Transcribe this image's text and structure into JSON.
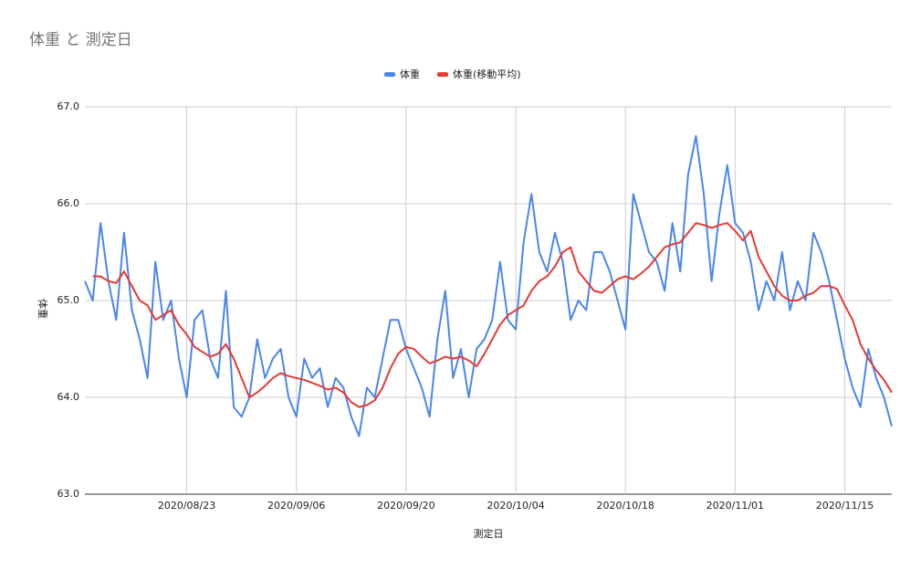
{
  "chart_data": {
    "type": "line",
    "title": "体重 と 測定日",
    "x_label": "測定日",
    "y_label": "体重",
    "x": [
      "2020/08/10",
      "2020/08/11",
      "2020/08/12",
      "2020/08/13",
      "2020/08/14",
      "2020/08/15",
      "2020/08/16",
      "2020/08/17",
      "2020/08/18",
      "2020/08/19",
      "2020/08/20",
      "2020/08/21",
      "2020/08/22",
      "2020/08/23",
      "2020/08/24",
      "2020/08/25",
      "2020/08/26",
      "2020/08/27",
      "2020/08/28",
      "2020/08/29",
      "2020/08/30",
      "2020/08/31",
      "2020/09/01",
      "2020/09/02",
      "2020/09/03",
      "2020/09/04",
      "2020/09/05",
      "2020/09/06",
      "2020/09/07",
      "2020/09/08",
      "2020/09/09",
      "2020/09/10",
      "2020/09/11",
      "2020/09/12",
      "2020/09/13",
      "2020/09/14",
      "2020/09/15",
      "2020/09/16",
      "2020/09/17",
      "2020/09/18",
      "2020/09/19",
      "2020/09/20",
      "2020/09/21",
      "2020/09/22",
      "2020/09/23",
      "2020/09/24",
      "2020/09/25",
      "2020/09/26",
      "2020/09/27",
      "2020/09/28",
      "2020/09/29",
      "2020/09/30",
      "2020/10/01",
      "2020/10/02",
      "2020/10/03",
      "2020/10/04",
      "2020/10/05",
      "2020/10/06",
      "2020/10/07",
      "2020/10/08",
      "2020/10/09",
      "2020/10/10",
      "2020/10/11",
      "2020/10/12",
      "2020/10/13",
      "2020/10/14",
      "2020/10/15",
      "2020/10/16",
      "2020/10/17",
      "2020/10/18",
      "2020/10/19",
      "2020/10/20",
      "2020/10/21",
      "2020/10/22",
      "2020/10/23",
      "2020/10/24",
      "2020/10/25",
      "2020/10/26",
      "2020/10/27",
      "2020/10/28",
      "2020/10/29",
      "2020/10/30",
      "2020/10/31",
      "2020/11/01",
      "2020/11/02",
      "2020/11/03",
      "2020/11/04",
      "2020/11/05",
      "2020/11/06",
      "2020/11/07",
      "2020/11/08",
      "2020/11/09",
      "2020/11/10",
      "2020/11/11",
      "2020/11/12",
      "2020/11/13",
      "2020/11/14",
      "2020/11/15",
      "2020/11/16",
      "2020/11/17",
      "2020/11/18",
      "2020/11/19",
      "2020/11/20",
      "2020/11/21"
    ],
    "series": [
      {
        "name": "体重",
        "color": "#4a86e8",
        "values": [
          65.2,
          65.0,
          65.8,
          65.2,
          64.8,
          65.7,
          64.9,
          64.6,
          64.2,
          65.4,
          64.8,
          65.0,
          64.4,
          64.0,
          64.8,
          64.9,
          64.4,
          64.2,
          65.1,
          63.9,
          63.8,
          64.0,
          64.6,
          64.2,
          64.4,
          64.5,
          64.0,
          63.8,
          64.4,
          64.2,
          64.3,
          63.9,
          64.2,
          64.1,
          63.8,
          63.6,
          64.1,
          64.0,
          64.4,
          64.8,
          64.8,
          64.5,
          64.3,
          64.1,
          63.8,
          64.6,
          65.1,
          64.2,
          64.5,
          64.0,
          64.5,
          64.6,
          64.8,
          65.4,
          64.8,
          64.7,
          65.6,
          66.1,
          65.5,
          65.3,
          65.7,
          65.4,
          64.8,
          65.0,
          64.9,
          65.5,
          65.5,
          65.3,
          65.0,
          64.7,
          66.1,
          65.8,
          65.5,
          65.4,
          65.1,
          65.8,
          65.3,
          66.3,
          66.7,
          66.1,
          65.2,
          65.9,
          66.4,
          65.8,
          65.7,
          65.4,
          64.9,
          65.2,
          65.0,
          65.5,
          64.9,
          65.2,
          65.0,
          65.7,
          65.5,
          65.2,
          64.8,
          64.4,
          64.1,
          63.9,
          64.5,
          64.2,
          64.0,
          63.7
        ]
      },
      {
        "name": "体重(移動平均)",
        "color": "#e53935",
        "values": [
          null,
          65.25,
          65.25,
          65.2,
          65.18,
          65.3,
          65.15,
          65.0,
          64.95,
          64.8,
          64.85,
          64.9,
          64.75,
          64.65,
          64.52,
          64.47,
          64.42,
          64.45,
          64.55,
          64.4,
          64.2,
          64.0,
          64.05,
          64.12,
          64.2,
          64.25,
          64.22,
          64.2,
          64.18,
          64.15,
          64.12,
          64.08,
          64.1,
          64.05,
          63.95,
          63.9,
          63.92,
          63.97,
          64.1,
          64.3,
          64.45,
          64.52,
          64.5,
          64.42,
          64.35,
          64.38,
          64.42,
          64.4,
          64.42,
          64.38,
          64.32,
          64.45,
          64.6,
          64.75,
          64.85,
          64.9,
          64.95,
          65.1,
          65.2,
          65.25,
          65.35,
          65.5,
          65.55,
          65.3,
          65.2,
          65.1,
          65.08,
          65.15,
          65.22,
          65.25,
          65.22,
          65.28,
          65.35,
          65.45,
          65.55,
          65.58,
          65.6,
          65.7,
          65.8,
          65.78,
          65.75,
          65.78,
          65.8,
          65.72,
          65.62,
          65.72,
          65.45,
          65.3,
          65.15,
          65.05,
          65.0,
          65.0,
          65.05,
          65.08,
          65.15,
          65.15,
          65.12,
          64.95,
          64.8,
          64.55,
          64.4,
          64.28,
          64.18,
          64.05
        ]
      }
    ],
    "xlim": [
      "2020/08/10",
      "2020/11/21"
    ],
    "xticks": [
      "2020/08/23",
      "2020/09/06",
      "2020/09/20",
      "2020/10/04",
      "2020/10/18",
      "2020/11/01",
      "2020/11/15"
    ],
    "ylim": [
      63,
      67
    ],
    "yticks": [
      {
        "value": 63,
        "label": "63.0"
      },
      {
        "value": 64,
        "label": "64.0"
      },
      {
        "value": 65,
        "label": "65.0"
      },
      {
        "value": 66,
        "label": "66.0"
      },
      {
        "value": 67,
        "label": "67.0"
      }
    ],
    "grid": true,
    "legend": "top"
  }
}
